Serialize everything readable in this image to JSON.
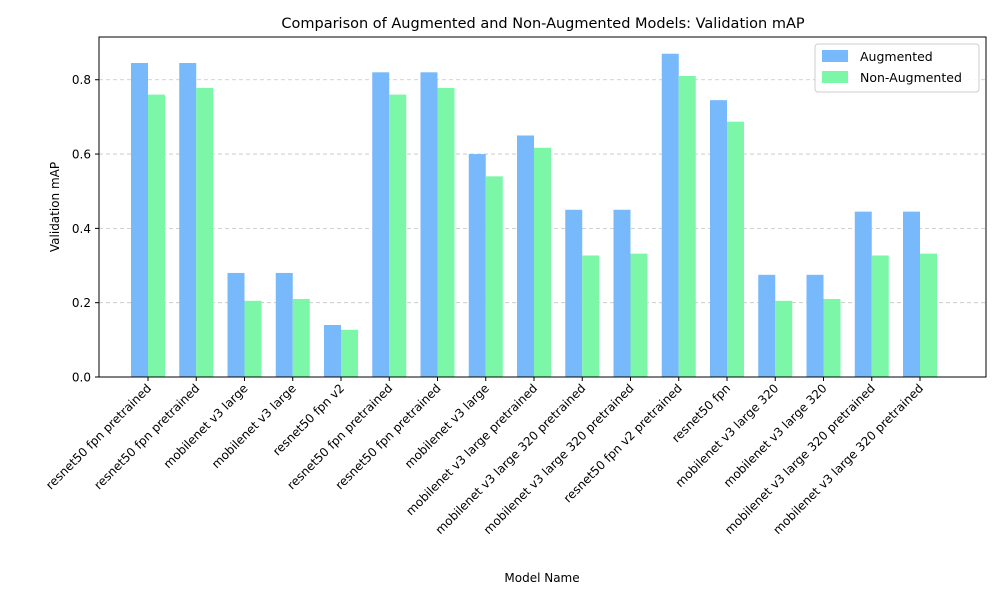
{
  "chart_data": {
    "type": "bar",
    "title": "Comparison of Augmented and Non-Augmented Models: Validation mAP",
    "xlabel": "Model Name",
    "ylabel": "Validation mAP",
    "ylim": [
      0,
      0.915
    ],
    "yticks": [
      "0.0",
      "0.2",
      "0.4",
      "0.6",
      "0.8"
    ],
    "grid": "y-dashed",
    "legend_position": "top-right",
    "categories": [
      "resnet50 fpn pretrained",
      "resnet50 fpn pretrained",
      "mobilenet v3 large",
      "mobilenet v3 large",
      "resnet50 fpn v2",
      "resnet50 fpn pretrained",
      "resnet50 fpn pretrained",
      "mobilenet v3 large",
      "mobilenet v3 large pretrained",
      "mobilenet v3 large 320 pretrained",
      "mobilenet v3 large 320 pretrained",
      "resnet50 fpn v2 pretrained",
      "resnet50 fpn",
      "mobilenet v3 large 320",
      "mobilenet v3 large 320",
      "mobilenet v3 large 320 pretrained",
      "mobilenet v3 large 320 pretrained"
    ],
    "series": [
      {
        "name": "Augmented",
        "color": "#78b9fb",
        "values": [
          0.845,
          0.845,
          0.28,
          0.28,
          0.14,
          0.82,
          0.82,
          0.6,
          0.65,
          0.45,
          0.45,
          0.87,
          0.745,
          0.275,
          0.275,
          0.445,
          0.445
        ]
      },
      {
        "name": "Non-Augmented",
        "color": "#7bf7a7",
        "values": [
          0.76,
          0.778,
          0.205,
          0.21,
          0.127,
          0.76,
          0.778,
          0.54,
          0.617,
          0.327,
          0.332,
          0.81,
          0.687,
          0.205,
          0.21,
          0.327,
          0.332
        ]
      }
    ]
  }
}
